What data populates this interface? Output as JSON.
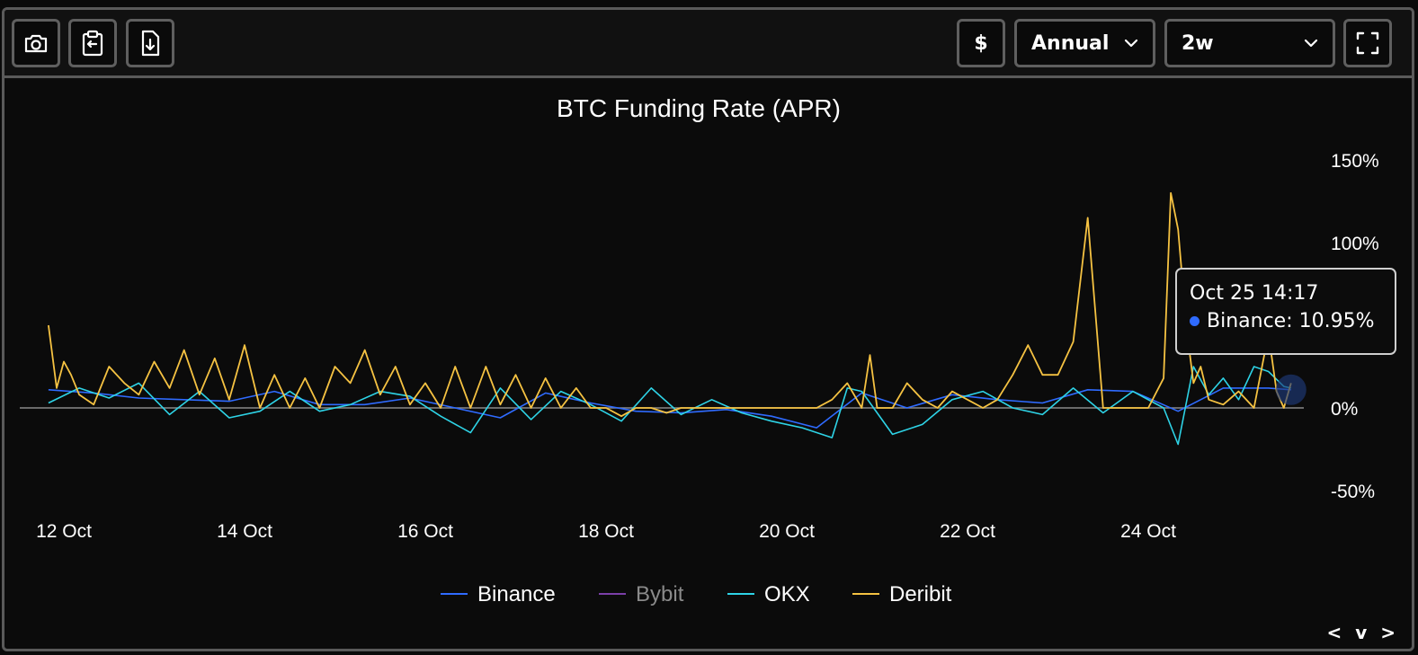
{
  "toolbar": {
    "currency_label": "$",
    "period_value": "Annual",
    "range_value": "2w"
  },
  "tooltip": {
    "time": "Oct 25 14:17",
    "series": "Binance",
    "value_text": "10.95%"
  },
  "pager": "< v >",
  "colors": {
    "Binance": "#2f6bff",
    "Bybit": "#7b3fa8",
    "OKX": "#2ed3e6",
    "Deribit": "#f5c242",
    "zero_line": "#8a8a8a"
  },
  "chart_data": {
    "type": "line",
    "title": "BTC Funding Rate (APR)",
    "xlabel": "",
    "ylabel": "",
    "y_ticks": [
      150,
      100,
      0,
      -50
    ],
    "y_tick_labels": [
      "150%",
      "100%",
      "0%",
      "-50%"
    ],
    "ylim": [
      -50,
      150
    ],
    "x_range": [
      "Oct 11 20:00",
      "Oct 25 18:00"
    ],
    "x_ticks": [
      "12 Oct",
      "14 Oct",
      "16 Oct",
      "18 Oct",
      "20 Oct",
      "22 Oct",
      "24 Oct"
    ],
    "x_tick_days": [
      12,
      14,
      16,
      18,
      20,
      22,
      24
    ],
    "grid": false,
    "legend_position": "bottom-center",
    "series": [
      {
        "name": "Binance",
        "x_days": [
          11.83,
          12.33,
          12.83,
          13.33,
          13.83,
          14.33,
          14.83,
          15.33,
          15.83,
          16.33,
          16.83,
          17.33,
          17.83,
          18.33,
          18.83,
          19.33,
          19.83,
          20.33,
          20.83,
          21.33,
          21.83,
          22.33,
          22.83,
          23.33,
          23.83,
          24.33,
          24.83,
          25.33,
          25.58
        ],
        "values": [
          11,
          9,
          6,
          5,
          4,
          10,
          2,
          2,
          6,
          0,
          -6,
          9,
          3,
          -2,
          -3,
          -1,
          -5,
          -12,
          9,
          0,
          8,
          5,
          3,
          11,
          10,
          -2,
          12,
          12,
          11
        ],
        "legend_muted": false
      },
      {
        "name": "Bybit",
        "x_days": [],
        "values": [],
        "legend_muted": true
      },
      {
        "name": "OKX",
        "x_days": [
          11.83,
          12.17,
          12.5,
          12.83,
          13.17,
          13.5,
          13.83,
          14.17,
          14.5,
          14.83,
          15.17,
          15.5,
          15.83,
          16.17,
          16.5,
          16.83,
          17.17,
          17.5,
          17.83,
          18.17,
          18.5,
          18.83,
          19.17,
          19.5,
          19.83,
          20.17,
          20.5,
          20.67,
          20.83,
          21.17,
          21.5,
          21.83,
          22.17,
          22.5,
          22.83,
          23.17,
          23.5,
          23.83,
          24.17,
          24.33,
          24.5,
          24.67,
          24.83,
          25,
          25.17,
          25.33,
          25.5,
          25.58
        ],
        "values": [
          3,
          12,
          6,
          15,
          -4,
          10,
          -6,
          -2,
          10,
          -2,
          2,
          10,
          7,
          -5,
          -15,
          12,
          -7,
          10,
          2,
          -8,
          12,
          -4,
          5,
          -3,
          -8,
          -12,
          -18,
          12,
          10,
          -16,
          -10,
          5,
          10,
          0,
          -4,
          12,
          -3,
          10,
          0,
          -22,
          25,
          8,
          18,
          5,
          25,
          22,
          13,
          12
        ],
        "legend_muted": false
      },
      {
        "name": "Deribit",
        "x_days": [
          11.83,
          11.92,
          12.0,
          12.08,
          12.17,
          12.33,
          12.5,
          12.67,
          12.83,
          13.0,
          13.17,
          13.33,
          13.5,
          13.67,
          13.83,
          14.0,
          14.17,
          14.33,
          14.5,
          14.67,
          14.83,
          15.0,
          15.17,
          15.33,
          15.5,
          15.67,
          15.83,
          16.0,
          16.17,
          16.33,
          16.5,
          16.67,
          16.83,
          17.0,
          17.17,
          17.33,
          17.5,
          17.67,
          17.83,
          18.0,
          18.17,
          18.33,
          18.5,
          18.67,
          18.83,
          19.0,
          19.5,
          20.0,
          20.33,
          20.5,
          20.67,
          20.83,
          20.92,
          21.0,
          21.17,
          21.33,
          21.5,
          21.67,
          21.83,
          22.0,
          22.17,
          22.33,
          22.5,
          22.67,
          22.83,
          23.0,
          23.17,
          23.33,
          23.5,
          23.67,
          23.83,
          24.0,
          24.17,
          24.25,
          24.33,
          24.42,
          24.5,
          24.58,
          24.67,
          24.83,
          25.0,
          25.17,
          25.33,
          25.42,
          25.5,
          25.58
        ],
        "values": [
          50,
          12,
          28,
          20,
          8,
          2,
          25,
          15,
          8,
          28,
          12,
          35,
          8,
          30,
          5,
          38,
          0,
          20,
          0,
          18,
          0,
          25,
          15,
          35,
          8,
          25,
          2,
          15,
          0,
          25,
          0,
          25,
          2,
          20,
          0,
          18,
          0,
          12,
          0,
          0,
          -5,
          0,
          0,
          -3,
          0,
          0,
          0,
          0,
          0,
          5,
          15,
          0,
          32,
          0,
          0,
          15,
          5,
          0,
          10,
          5,
          0,
          5,
          20,
          38,
          20,
          20,
          40,
          115,
          0,
          0,
          0,
          0,
          18,
          130,
          108,
          50,
          15,
          25,
          5,
          2,
          10,
          0,
          45,
          10,
          0,
          15
        ],
        "legend_muted": false
      }
    ]
  }
}
